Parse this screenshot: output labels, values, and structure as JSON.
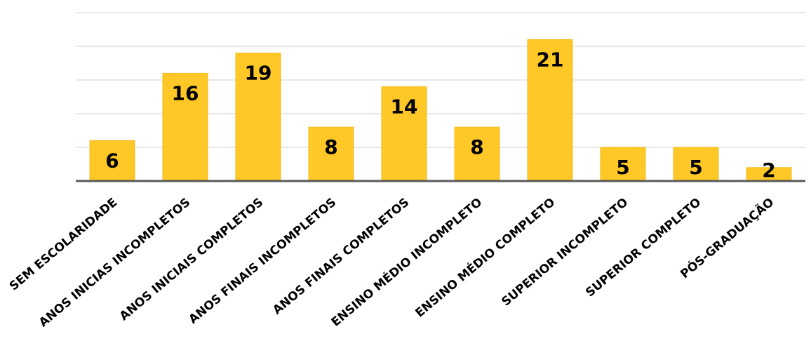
{
  "chart_data": {
    "type": "bar",
    "categories": [
      "SEM ESCOLARIDADE",
      "ANOS INICIAS INCOMPLETOS",
      "ANOS INICIAIS COMPLETOS",
      "ANOS FINAIS INCOMPLETOS",
      "ANOS FINAIS COMPLETOS",
      "ENSINO MÉDIO INCOMPLETO",
      "ENSINO MÉDIO COMPLETO",
      "SUPERIOR INCOMPLETO",
      "SUPERIOR COMPLETO",
      "PÓS-GRADUAÇÃO"
    ],
    "values": [
      6,
      16,
      19,
      8,
      14,
      8,
      21,
      5,
      5,
      2
    ],
    "ylim": [
      0,
      25
    ],
    "grid": true,
    "colors": {
      "bar": "#FFC826",
      "axis": "#595959",
      "grid": "#D9D9D9"
    }
  }
}
